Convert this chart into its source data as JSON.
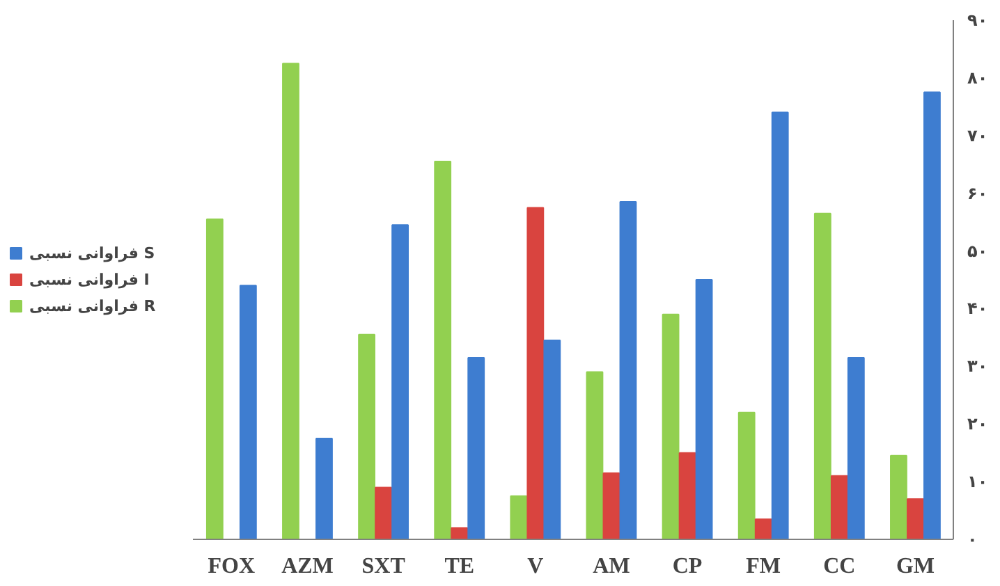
{
  "chart_data": {
    "type": "bar",
    "categories": [
      "FOX",
      "AZM",
      "SXT",
      "TE",
      "V",
      "AM",
      "CP",
      "FM",
      "CC",
      "GM"
    ],
    "series": [
      {
        "name": "فراوانی نسبی R",
        "color": "#92d050",
        "values": [
          55.5,
          82.5,
          35.5,
          65.5,
          7.5,
          29,
          39,
          22,
          56.5,
          14.5
        ]
      },
      {
        "name": "فراوانی نسبی I",
        "color": "#d9443f",
        "values": [
          null,
          null,
          9,
          2,
          57.5,
          11.5,
          15,
          3.5,
          11,
          7
        ]
      },
      {
        "name": "فراوانی نسبی S",
        "color": "#3e7dd0",
        "values": [
          44,
          17.5,
          54.5,
          31.5,
          34.5,
          58.5,
          45,
          74,
          31.5,
          77.5
        ]
      }
    ],
    "ylim": [
      0,
      90
    ],
    "yticks": [
      {
        "value": 0,
        "label": "۰"
      },
      {
        "value": 10,
        "label": "۱۰"
      },
      {
        "value": 20,
        "label": "۲۰"
      },
      {
        "value": 30,
        "label": "۳۰"
      },
      {
        "value": 40,
        "label": "۴۰"
      },
      {
        "value": 50,
        "label": "۵۰"
      },
      {
        "value": 60,
        "label": "۶۰"
      },
      {
        "value": 70,
        "label": "۷۰"
      },
      {
        "value": 80,
        "label": "۸۰"
      },
      {
        "value": 90,
        "label": "۹۰"
      }
    ],
    "grid": false,
    "legend": "left"
  }
}
